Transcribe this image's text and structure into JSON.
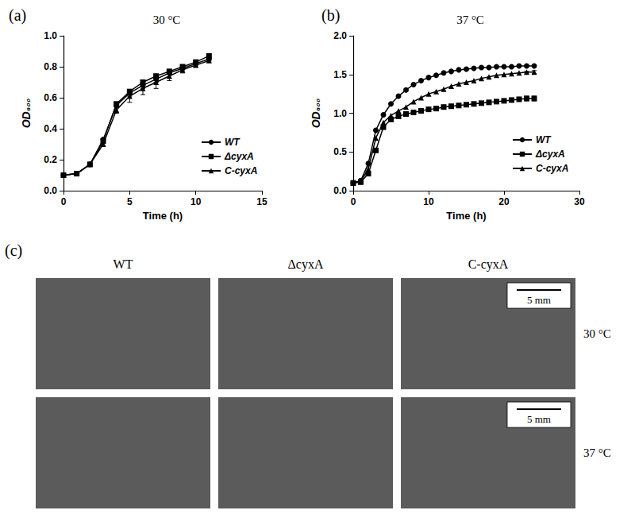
{
  "chart_data": [
    {
      "type": "line",
      "panel": "(a)",
      "title": "30 °C",
      "x_label": "Time (h)",
      "y_label": "OD₆₀₀",
      "x": [
        0,
        1,
        2,
        3,
        4,
        5,
        6,
        7,
        8,
        9,
        10,
        11
      ],
      "series": [
        {
          "name": "WT",
          "color": "#000000",
          "marker": "circle",
          "values": [
            0.1,
            0.11,
            0.17,
            0.33,
            0.55,
            0.63,
            0.68,
            0.72,
            0.76,
            0.79,
            0.82,
            0.85
          ],
          "errors": [
            null,
            null,
            null,
            null,
            0.01,
            0.02,
            0.02,
            0.02,
            0.01,
            0.01,
            0.01,
            0.01
          ]
        },
        {
          "name": "ΔcyxA",
          "color": "#000000",
          "marker": "square",
          "values": [
            0.1,
            0.11,
            0.17,
            0.32,
            0.56,
            0.64,
            0.7,
            0.74,
            0.77,
            0.8,
            0.83,
            0.87
          ],
          "errors": [
            null,
            null,
            null,
            null,
            0.01,
            0.01,
            0.01,
            0.01,
            0.01,
            0.01,
            0.01,
            0.01
          ]
        },
        {
          "name": "C-cyxA",
          "color": "#000000",
          "marker": "triangle",
          "values": [
            0.1,
            0.11,
            0.17,
            0.3,
            0.52,
            0.61,
            0.66,
            0.7,
            0.74,
            0.78,
            0.81,
            0.84
          ],
          "errors": [
            null,
            null,
            null,
            0.01,
            0.02,
            0.04,
            0.04,
            0.04,
            0.03,
            0.02,
            0.01,
            0.01
          ]
        }
      ],
      "xlim": [
        0,
        15
      ],
      "xticks": [
        0,
        5,
        10,
        15
      ],
      "ylim": [
        0,
        1
      ],
      "yticks": [
        {
          "value": 0,
          "label": "0.0"
        },
        {
          "value": 0.2,
          "label": "0.2"
        },
        {
          "value": 0.4,
          "label": "0.4"
        },
        {
          "value": 0.6,
          "label": "0.6"
        },
        {
          "value": 0.8,
          "label": "0.8"
        },
        {
          "value": 1,
          "label": "1.0"
        }
      ],
      "grid": false,
      "legend": "lower right"
    },
    {
      "type": "line",
      "panel": "(b)",
      "title": "37 °C",
      "x_label": "Time (h)",
      "y_label": "OD₆₀₀",
      "x": [
        0,
        1,
        2,
        3,
        4,
        5,
        6,
        7,
        8,
        9,
        10,
        11,
        12,
        13,
        14,
        15,
        16,
        17,
        18,
        19,
        20,
        21,
        22,
        23,
        24
      ],
      "series": [
        {
          "name": "WT",
          "color": "#000000",
          "marker": "circle",
          "values": [
            0.1,
            0.13,
            0.35,
            0.78,
            0.98,
            1.12,
            1.22,
            1.3,
            1.37,
            1.42,
            1.46,
            1.49,
            1.52,
            1.54,
            1.56,
            1.57,
            1.58,
            1.59,
            1.59,
            1.6,
            1.6,
            1.6,
            1.61,
            1.61,
            1.61
          ],
          "errors": [
            null,
            null,
            null,
            null,
            null,
            null,
            null,
            null,
            null,
            null,
            null,
            null,
            null,
            null,
            null,
            null,
            null,
            null,
            null,
            null,
            null,
            null,
            null,
            null,
            0.01
          ]
        },
        {
          "name": "ΔcyxA",
          "color": "#000000",
          "marker": "square",
          "values": [
            0.1,
            0.11,
            0.22,
            0.52,
            0.82,
            0.92,
            0.96,
            0.99,
            1.01,
            1.03,
            1.05,
            1.06,
            1.08,
            1.09,
            1.1,
            1.11,
            1.12,
            1.13,
            1.14,
            1.15,
            1.16,
            1.17,
            1.18,
            1.19,
            1.19
          ],
          "errors": [
            null,
            null,
            null,
            null,
            null,
            null,
            null,
            null,
            null,
            null,
            null,
            null,
            null,
            null,
            null,
            null,
            null,
            null,
            null,
            null,
            null,
            null,
            0.02,
            0.03,
            0.03
          ]
        },
        {
          "name": "C-cyxA",
          "color": "#000000",
          "marker": "triangle",
          "values": [
            0.1,
            0.12,
            0.28,
            0.68,
            0.88,
            0.97,
            1.03,
            1.08,
            1.15,
            1.2,
            1.25,
            1.28,
            1.31,
            1.35,
            1.38,
            1.4,
            1.42,
            1.45,
            1.47,
            1.49,
            1.5,
            1.51,
            1.52,
            1.53,
            1.53
          ],
          "errors": [
            null,
            null,
            null,
            null,
            null,
            null,
            null,
            null,
            null,
            null,
            null,
            null,
            null,
            null,
            null,
            null,
            null,
            null,
            null,
            null,
            null,
            null,
            null,
            0.01,
            0.02
          ]
        }
      ],
      "xlim": [
        0,
        30
      ],
      "xticks": [
        0,
        10,
        20,
        30
      ],
      "ylim": [
        0,
        2
      ],
      "yticks": [
        {
          "value": 0,
          "label": "0.0"
        },
        {
          "value": 0.5,
          "label": "0.5"
        },
        {
          "value": 1,
          "label": "1.0"
        },
        {
          "value": 1.5,
          "label": "1.5"
        },
        {
          "value": 2,
          "label": "2.0"
        }
      ],
      "grid": false,
      "legend": "lower right"
    }
  ],
  "image_panel": {
    "panel": "(c)",
    "columns": [
      "WT",
      "ΔcyxA",
      "C-cyxA"
    ],
    "rows": [
      "30 °C",
      "37 °C"
    ],
    "scale_bar": "5 mm",
    "scale_bar_column": "C-cyxA"
  }
}
